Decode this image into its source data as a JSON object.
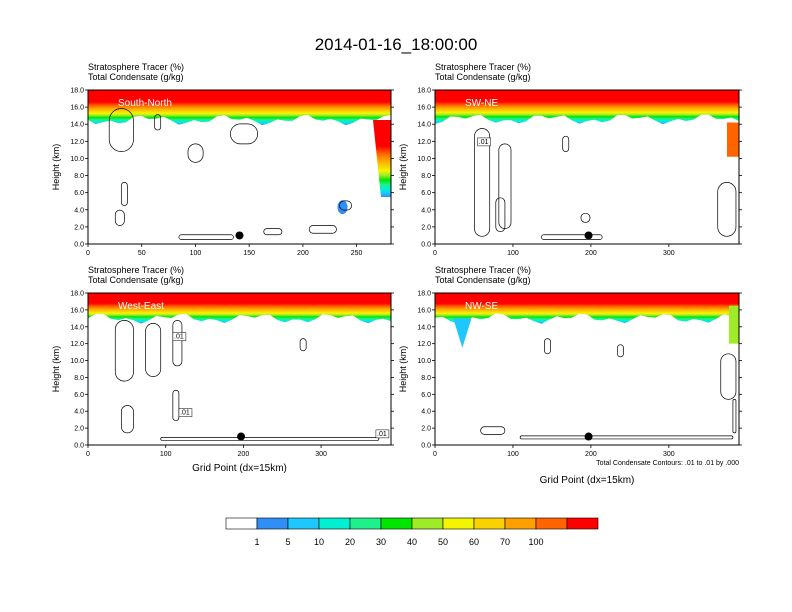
{
  "title": "2014-01-16_18:00:00",
  "colors": {
    "scale": [
      "#ffffff",
      "#2f8ff5",
      "#1ec8ff",
      "#00f0d2",
      "#1ef08c",
      "#00e600",
      "#a0eb28",
      "#f5f500",
      "#fad200",
      "#ffa000",
      "#ff6400",
      "#ff0000"
    ],
    "outline": "#000000"
  },
  "chart_data": [
    {
      "type": "heatmap",
      "panel_label": "South-North",
      "field_labels": [
        "Stratosphere Tracer   (%)",
        "Total Condensate   (g/kg)"
      ],
      "ylabel": "Height (km)",
      "xlabel": "",
      "xlim": [
        0,
        282
      ],
      "ylim": [
        0,
        18
      ],
      "xticks": [
        "0",
        "50",
        "100",
        "150",
        "200",
        "250"
      ],
      "yticks": [
        "0.0",
        "2.0",
        "4.0",
        "6.0",
        "8.0",
        "10.0",
        "12.0",
        "14.0",
        "16.0",
        "18.0"
      ],
      "tropopause_km": 14.5,
      "marker": {
        "x": 141,
        "y": 1.0
      },
      "contour_labels": []
    },
    {
      "type": "heatmap",
      "panel_label": "SW-NE",
      "field_labels": [
        "Stratosphere Tracer   (%)",
        "Total Condensate   (g/kg)"
      ],
      "ylabel": "Height (km)",
      "xlabel": "",
      "xlim": [
        0,
        390
      ],
      "ylim": [
        0,
        18
      ],
      "xticks": [
        "0",
        "100",
        "200",
        "300"
      ],
      "yticks": [
        "0.0",
        "2.0",
        "4.0",
        "6.0",
        "8.0",
        "10.0",
        "12.0",
        "14.0",
        "16.0",
        "18.0"
      ],
      "tropopause_km": 14.6,
      "marker": {
        "x": 197,
        "y": 1.0
      },
      "contour_labels": [
        ".01"
      ]
    },
    {
      "type": "heatmap",
      "panel_label": "West-East",
      "field_labels": [
        "Stratosphere Tracer   (%)",
        "Total Condensate   (g/kg)"
      ],
      "ylabel": "Height (km)",
      "xlabel": "Grid Point (dx=15km)",
      "xlim": [
        0,
        390
      ],
      "ylim": [
        0,
        18
      ],
      "xticks": [
        "0",
        "100",
        "200",
        "300"
      ],
      "yticks": [
        "0.0",
        "2.0",
        "4.0",
        "6.0",
        "8.0",
        "10.0",
        "12.0",
        "14.0",
        "16.0",
        "18.0"
      ],
      "tropopause_km": 15.0,
      "marker": {
        "x": 197,
        "y": 1.0
      },
      "contour_labels": [
        ".01",
        ".01",
        ".01"
      ]
    },
    {
      "type": "heatmap",
      "panel_label": "NW-SE",
      "field_labels": [
        "Stratosphere Tracer   (%)",
        "Total Condensate   (g/kg)"
      ],
      "ylabel": "Height (km)",
      "xlabel": "Grid Point (dx=15km)",
      "xlim": [
        0,
        390
      ],
      "ylim": [
        0,
        18
      ],
      "xticks": [
        "0",
        "100",
        "200",
        "300"
      ],
      "yticks": [
        "0.0",
        "2.0",
        "4.0",
        "6.0",
        "8.0",
        "10.0",
        "12.0",
        "14.0",
        "16.0",
        "18.0"
      ],
      "tropopause_km": 15.0,
      "marker": {
        "x": 197,
        "y": 1.0
      },
      "contour_labels": [],
      "note": "Total Condensate Contours: .01 to .01 by .000"
    }
  ],
  "colorbar": {
    "levels": [
      "1",
      "5",
      "10",
      "20",
      "30",
      "40",
      "50",
      "60",
      "70",
      "100"
    ]
  }
}
